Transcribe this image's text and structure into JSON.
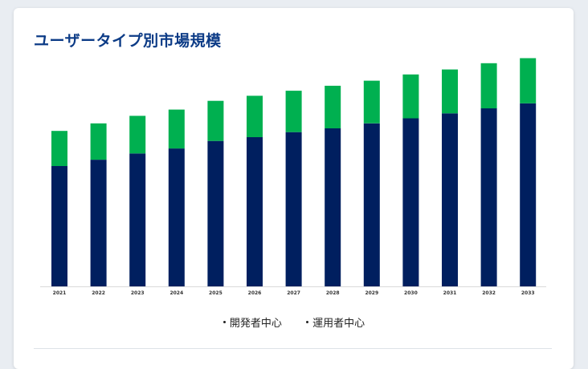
{
  "title": "ユーザータイプ別市場規模",
  "chart_data": {
    "type": "bar",
    "stacked": true,
    "categories": [
      "2021",
      "2022",
      "2023",
      "2024",
      "2025",
      "2026",
      "2027",
      "2028",
      "2029",
      "2030",
      "2031",
      "2032",
      "2033"
    ],
    "series": [
      {
        "name": "開発者中心",
        "color": "#001f5f",
        "values": [
          48,
          50.5,
          53,
          55,
          58,
          59.5,
          61.5,
          63,
          65,
          67,
          69,
          71,
          73
        ]
      },
      {
        "name": "運用者中心",
        "color": "#00b050",
        "values": [
          14,
          14.5,
          15,
          15.5,
          16,
          16.5,
          16.5,
          17,
          17,
          17.5,
          17.5,
          18,
          18
        ]
      }
    ],
    "ylim": [
      0,
      95
    ],
    "grid": false,
    "legend_position": "bottom"
  }
}
